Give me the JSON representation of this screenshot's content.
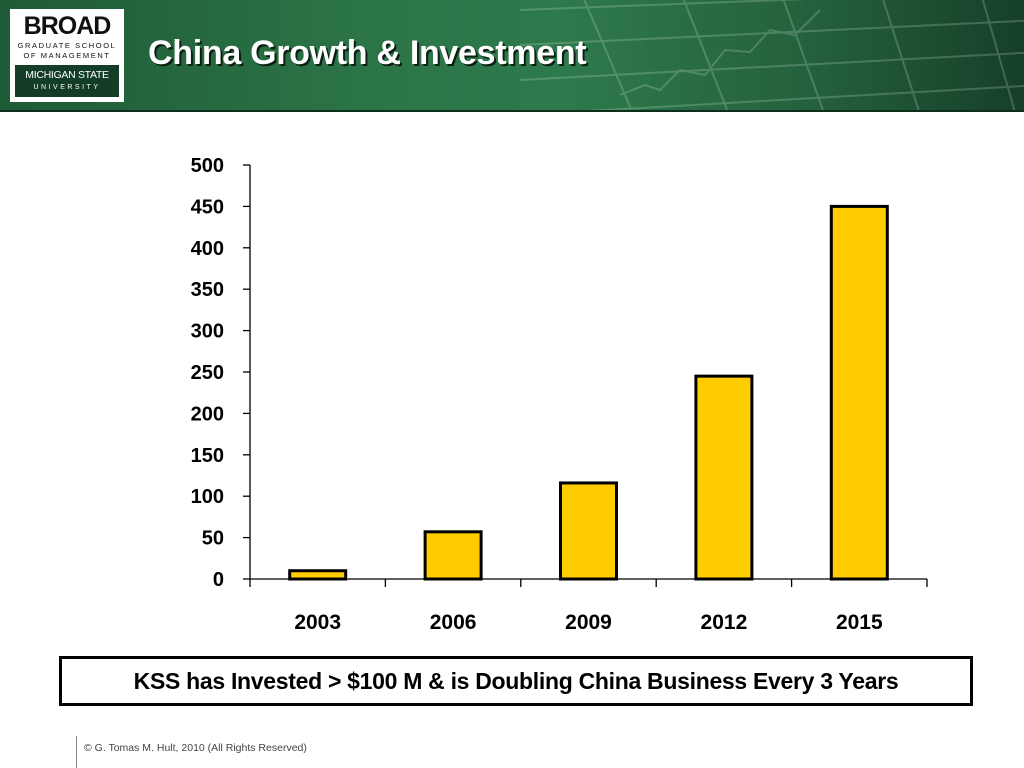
{
  "header": {
    "title": "China Growth & Investment",
    "logo": {
      "school": "BROAD",
      "line1": "GRADUATE SCHOOL",
      "line2": "OF MANAGEMENT",
      "university": "MICHIGAN STATE",
      "university_sub": "UNIVERSITY"
    }
  },
  "chart_data": {
    "type": "bar",
    "categories": [
      "2003",
      "2006",
      "2009",
      "2012",
      "2015"
    ],
    "values": [
      10,
      57,
      116,
      245,
      450
    ],
    "ylim": [
      0,
      500
    ],
    "yticks": [
      0,
      50,
      100,
      150,
      200,
      250,
      300,
      350,
      400,
      450,
      500
    ],
    "title": "",
    "xlabel": "",
    "ylabel": "",
    "grid": false,
    "bar_color": "#ffcc00",
    "bar_edge": "#000000"
  },
  "callout": "KSS has Invested > $100 M & is Doubling China Business Every 3 Years",
  "footer": "© G. Tomas M. Hult, 2010 (All Rights Reserved)",
  "colors": {
    "header_green": "#2b7446",
    "accent_yellow": "#ffcc00"
  }
}
